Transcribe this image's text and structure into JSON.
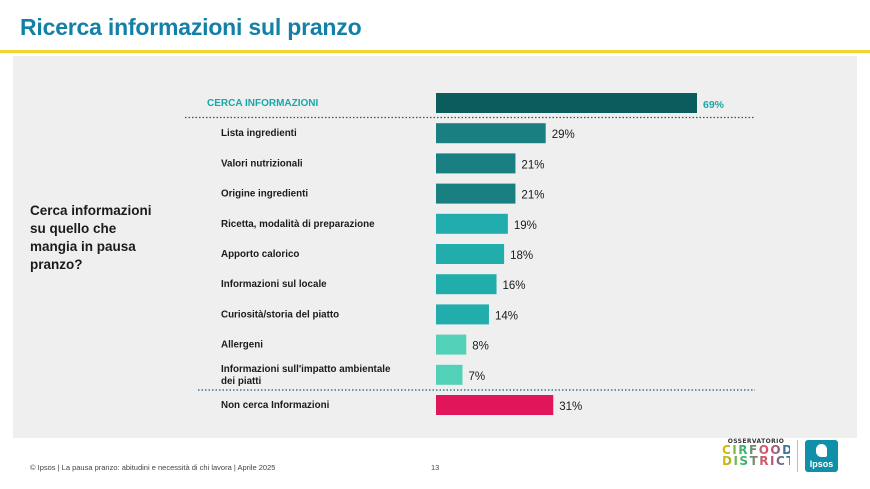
{
  "page": {
    "title": "Ricerca informazioni sul pranzo",
    "question": "Cerca informazioni su quello che mangia in pausa pranzo?",
    "footer": "© Ipsos | La pausa pranzo: abitudini e necessità di chi lavora | Aprile 2025",
    "page_number": "13",
    "logo_cirfood_top": "OSSERVATORIO",
    "logo_cirfood_mid": "CIRFOOD",
    "logo_cirfood_bottom": "DISTRICT",
    "logo_ipsos": "Ipsos"
  },
  "colors": {
    "title": "#1380a8",
    "rule": "#f2d532",
    "total_bar": "#0b5c5c",
    "total_label": "#17a9a9",
    "dark_teal": "#1a7f80",
    "mid_teal": "#22adad",
    "light_teal": "#52d1b8",
    "negative": "#e0155a"
  },
  "chart_data": {
    "type": "bar",
    "orientation": "horizontal",
    "title": "Ricerca informazioni sul pranzo",
    "xlim": [
      0,
      100
    ],
    "unit": "%",
    "bars": [
      {
        "label": "CERCA INFORMAZIONI",
        "value": 69,
        "display": "69%",
        "style": "total",
        "color": "#0b5c5c"
      },
      {
        "label": "Lista ingredienti",
        "value": 29,
        "display": "29%",
        "style": "item",
        "color": "#1a7f80"
      },
      {
        "label": "Valori nutrizionali",
        "value": 21,
        "display": "21%",
        "style": "item",
        "color": "#1a7f80"
      },
      {
        "label": "Origine ingredienti",
        "value": 21,
        "display": "21%",
        "style": "item",
        "color": "#1a7f80"
      },
      {
        "label": "Ricetta, modalità di preparazione",
        "value": 19,
        "display": "19%",
        "style": "item",
        "color": "#22adad"
      },
      {
        "label": "Apporto calorico",
        "value": 18,
        "display": "18%",
        "style": "item",
        "color": "#22adad"
      },
      {
        "label": "Informazioni sul locale",
        "value": 16,
        "display": "16%",
        "style": "item",
        "color": "#22adad"
      },
      {
        "label": "Curiosità/storia del piatto",
        "value": 14,
        "display": "14%",
        "style": "item",
        "color": "#22adad"
      },
      {
        "label": "Allergeni",
        "value": 8,
        "display": "8%",
        "style": "item",
        "color": "#52d1b8"
      },
      {
        "label": [
          "Informazioni sull'impatto ambientale",
          "dei piatti"
        ],
        "value": 7,
        "display": "7%",
        "style": "item",
        "color": "#52d1b8"
      },
      {
        "label": "Non cerca Informazioni",
        "value": 31,
        "display": "31%",
        "style": "negative",
        "color": "#e0155a"
      }
    ]
  }
}
